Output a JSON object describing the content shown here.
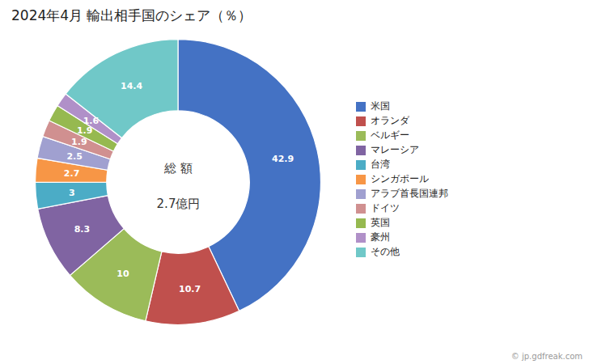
{
  "chart_data": {
    "type": "pie",
    "title": "2024年4月 輸出相手国のシェア（％）",
    "categories": [
      "米国",
      "オランダ",
      "ベルギー",
      "マレーシア",
      "台湾",
      "シンガポール",
      "アラブ首長国連邦",
      "ドイツ",
      "英国",
      "豪州",
      "その他"
    ],
    "values": [
      42.9,
      10.7,
      10.0,
      8.3,
      3.0,
      2.7,
      2.5,
      1.9,
      1.9,
      1.6,
      14.4
    ],
    "colors": [
      "#4472C4",
      "#C0504D",
      "#9BBB59",
      "#8064A2",
      "#4BACC6",
      "#F79646",
      "#A0A0D0",
      "#D09090",
      "#96B950",
      "#B090C8",
      "#70C8C8"
    ],
    "annotations": [
      "総 額",
      "2.7億円"
    ],
    "caption": "© jp.gdfreak.com",
    "data_labels": true,
    "legend": "right"
  }
}
